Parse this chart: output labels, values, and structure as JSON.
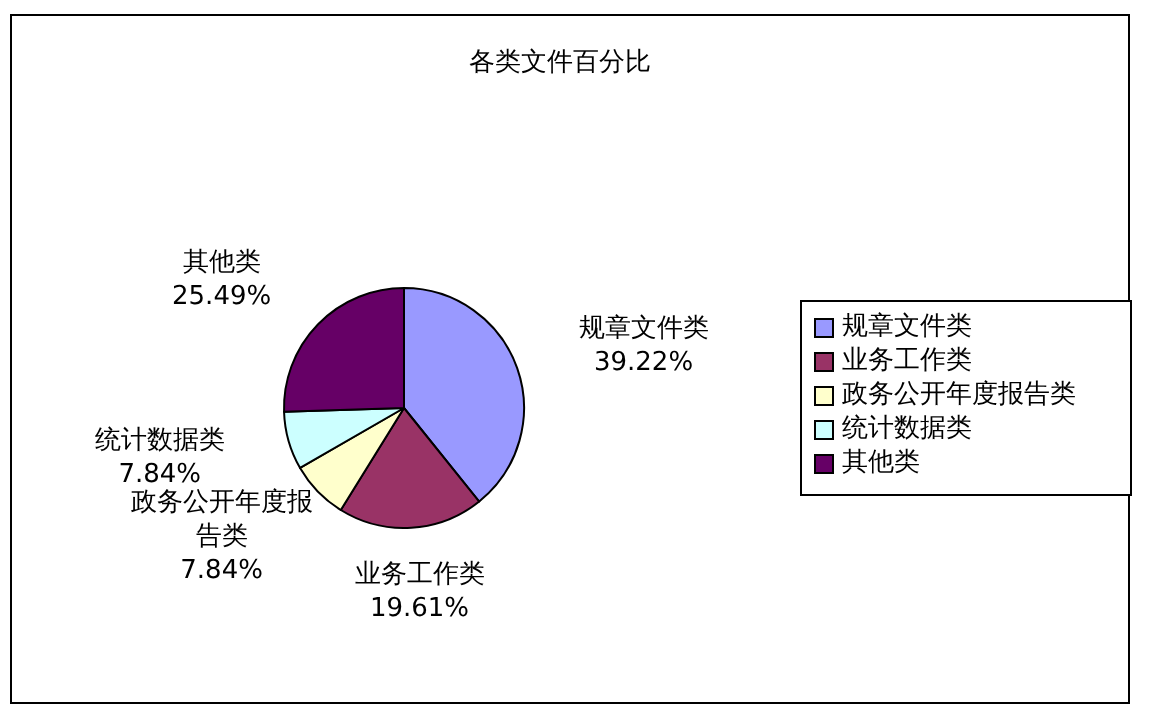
{
  "chart_data": {
    "type": "pie",
    "title": "各类文件百分比",
    "categories": [
      "规章文件类",
      "业务工作类",
      "政务公开年度报告类",
      "统计数据类",
      "其他类"
    ],
    "values": [
      39.22,
      19.61,
      7.84,
      7.84,
      25.49
    ],
    "value_labels": [
      "39.22%",
      "19.61%",
      "7.84%",
      "7.84%",
      "25.49%"
    ],
    "colors": [
      "#9999ff",
      "#993366",
      "#ffffcc",
      "#ccffff",
      "#660066"
    ],
    "legend": "right"
  }
}
